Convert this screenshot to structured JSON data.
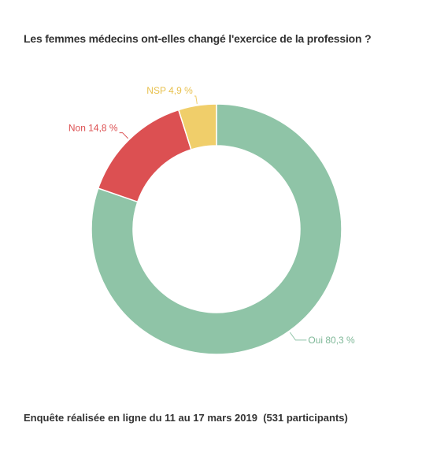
{
  "chart_data": {
    "type": "pie",
    "variant": "donut",
    "title": "Les femmes médecins ont-elles changé l'exercice de la profession ?",
    "footnote": "Enquête réalisée en ligne du 11 au 17 mars 2019  (531 participants)",
    "slices": [
      {
        "label": "Oui",
        "value": 80.3,
        "display": "Oui 80,3 %",
        "color": "#8fc4a7"
      },
      {
        "label": "Non",
        "value": 14.8,
        "display": "Non 14,8 %",
        "color": "#dc5052"
      },
      {
        "label": "NSP",
        "value": 4.9,
        "display": "NSP 4,9 %",
        "color": "#f0ce6a"
      }
    ]
  }
}
